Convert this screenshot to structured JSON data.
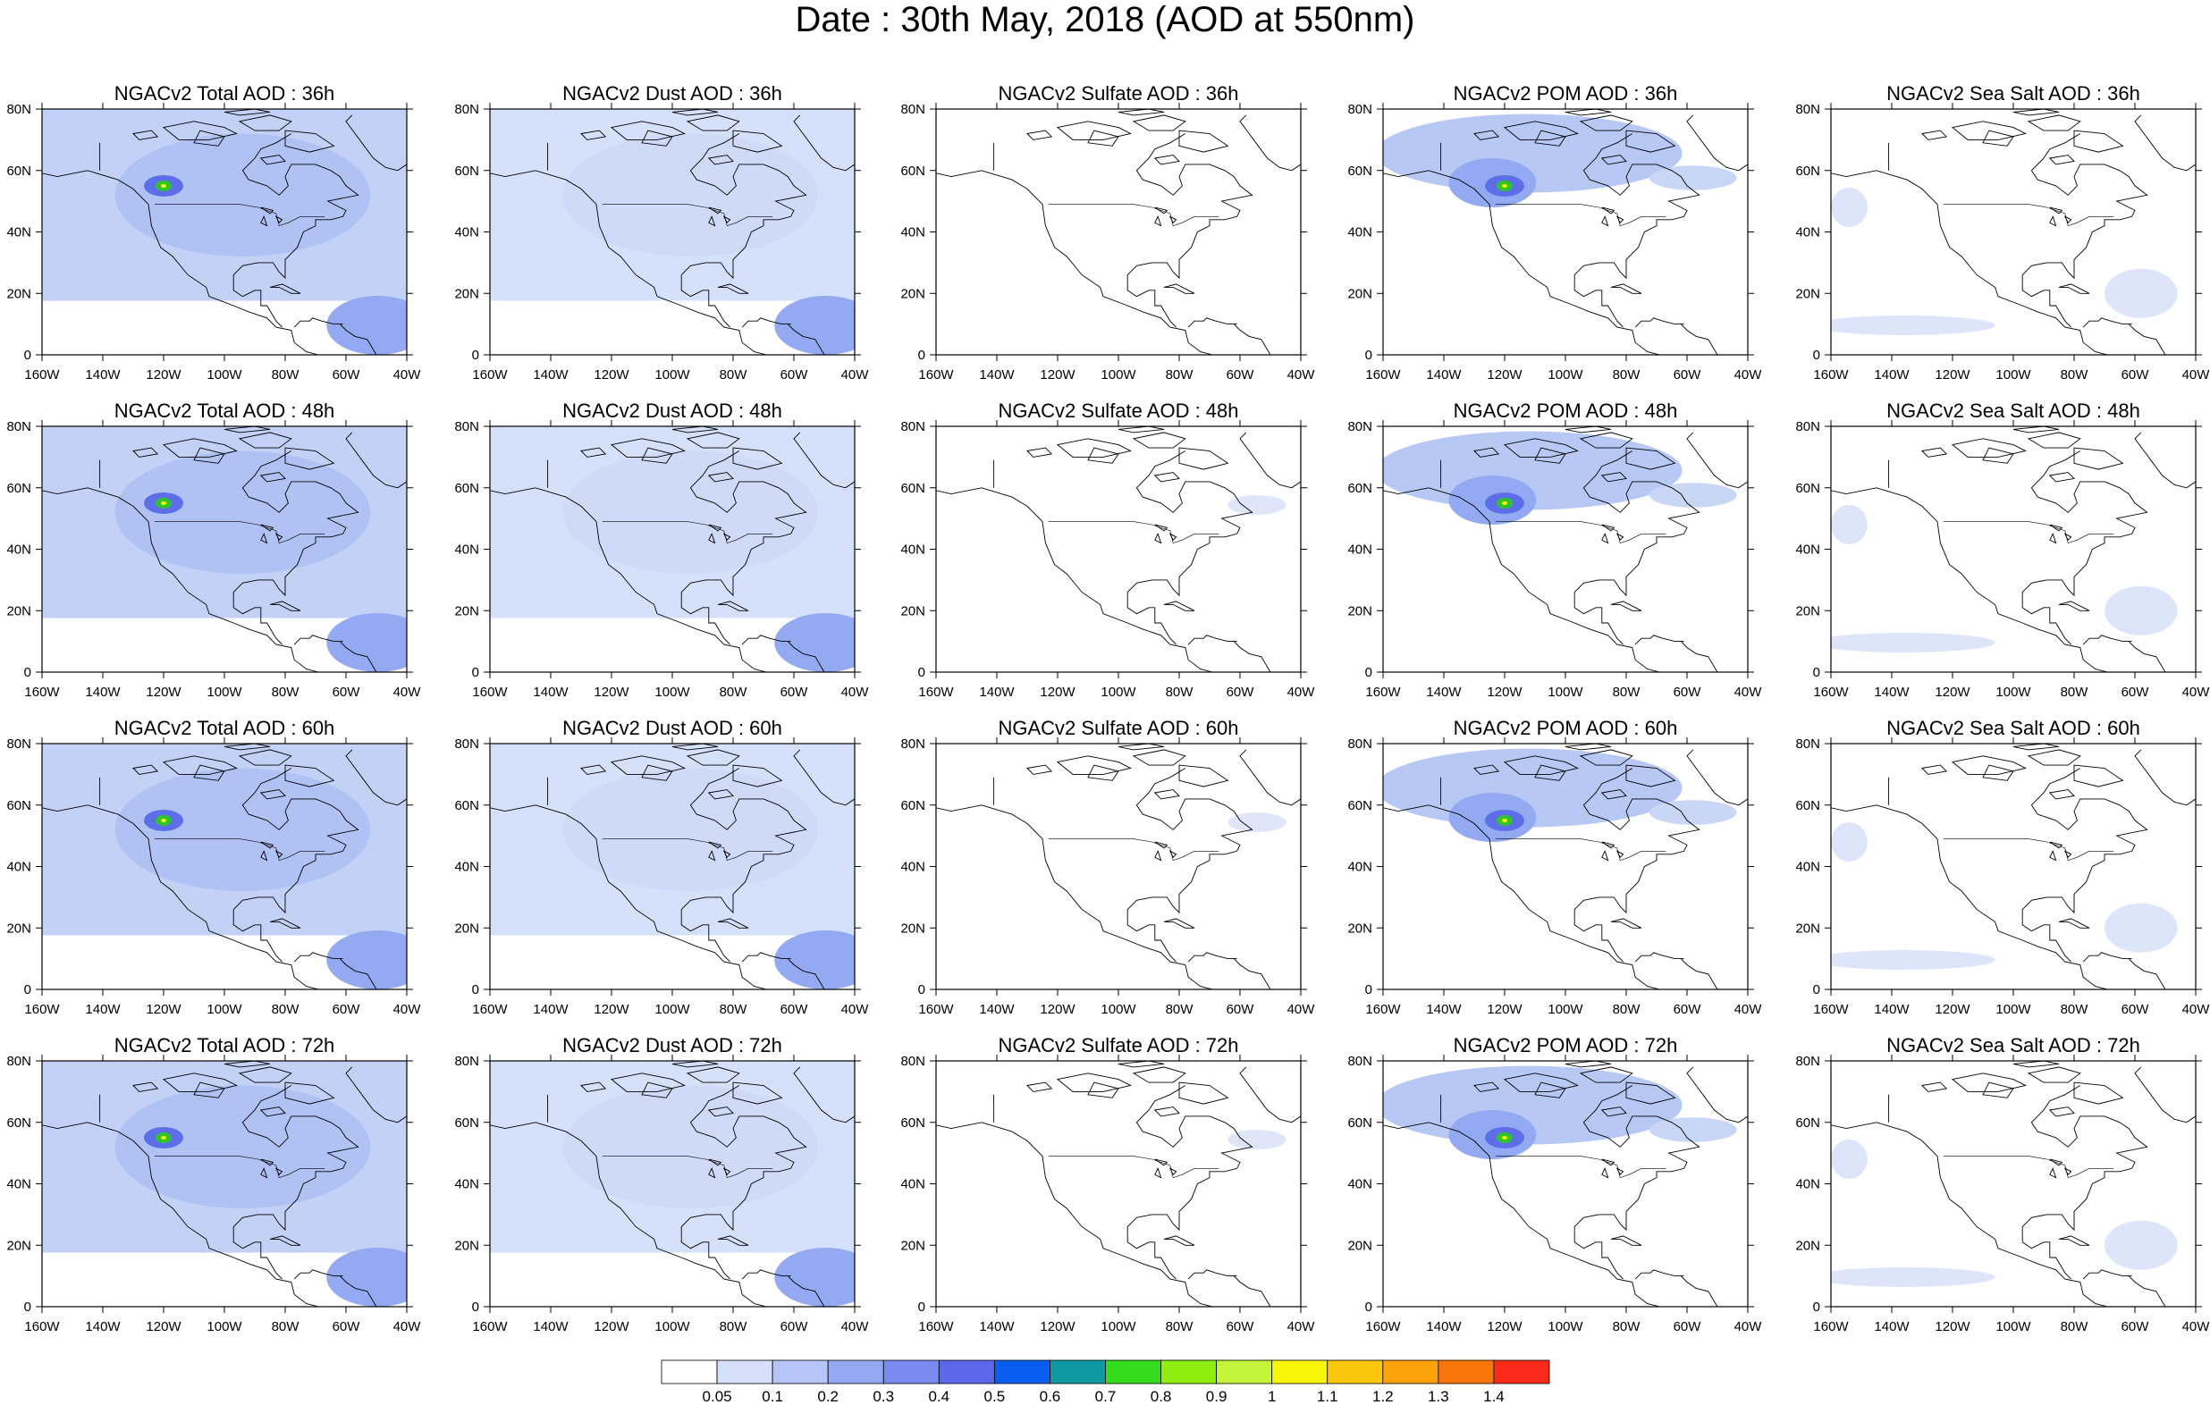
{
  "title": "Date : 30th May, 2018 (AOD at 550nm)",
  "columns": [
    {
      "key": "total",
      "color": "#a4b8f2"
    },
    {
      "key": "dust",
      "color": "#c9d6f6"
    },
    {
      "key": "sulfate",
      "color": "#dfe6fa"
    },
    {
      "key": "pom",
      "color": "#b7c8f5"
    },
    {
      "key": "seasalt",
      "color": "#dde5fa"
    }
  ],
  "panels": [
    [
      "NGACv2 Total AOD : 36h",
      "NGACv2 Dust AOD : 36h",
      "NGACv2 Sulfate AOD : 36h",
      "NGACv2 POM AOD : 36h",
      "NGACv2 Sea Salt AOD : 36h"
    ],
    [
      "NGACv2 Total AOD : 48h",
      "NGACv2 Dust AOD : 48h",
      "NGACv2 Sulfate AOD : 48h",
      "NGACv2 POM AOD : 48h",
      "NGACv2 Sea Salt AOD : 48h"
    ],
    [
      "NGACv2 Total AOD : 60h",
      "NGACv2 Dust AOD : 60h",
      "NGACv2 Sulfate AOD : 60h",
      "NGACv2 POM AOD : 60h",
      "NGACv2 Sea Salt AOD : 60h"
    ],
    [
      "NGACv2 Total AOD : 72h",
      "NGACv2 Dust AOD : 72h",
      "NGACv2 Sulfate AOD : 72h",
      "NGACv2 POM AOD : 72h",
      "NGACv2 Sea Salt  AOD : 72h"
    ]
  ],
  "x_ticks": [
    "160W",
    "140W",
    "120W",
    "100W",
    "80W",
    "60W",
    "40W"
  ],
  "y_ticks": [
    "80N",
    "60N",
    "40N",
    "20N",
    "0"
  ],
  "lon_range": [
    -160,
    -40
  ],
  "lat_range": [
    0,
    80
  ],
  "colorbar": {
    "levels": [
      "0.05",
      "0.1",
      "0.2",
      "0.3",
      "0.4",
      "0.5",
      "0.6",
      "0.7",
      "0.8",
      "0.9",
      "1",
      "1.1",
      "1.2",
      "1.3",
      "1.4"
    ],
    "colors": [
      "#ffffff",
      "#d7e0fb",
      "#b4c5f6",
      "#93aaf2",
      "#7a8bef",
      "#5c68ea",
      "#0b5df0",
      "#0e9aa0",
      "#33dd1d",
      "#8fee0e",
      "#c4f53a",
      "#f9f50a",
      "#fbc70b",
      "#fba20a",
      "#fa760b",
      "#fa2a1a"
    ]
  },
  "hotspot": {
    "color_core": "#f0f50a",
    "color_ring": "#30c42a",
    "color_halo": "#5c6fe8"
  }
}
